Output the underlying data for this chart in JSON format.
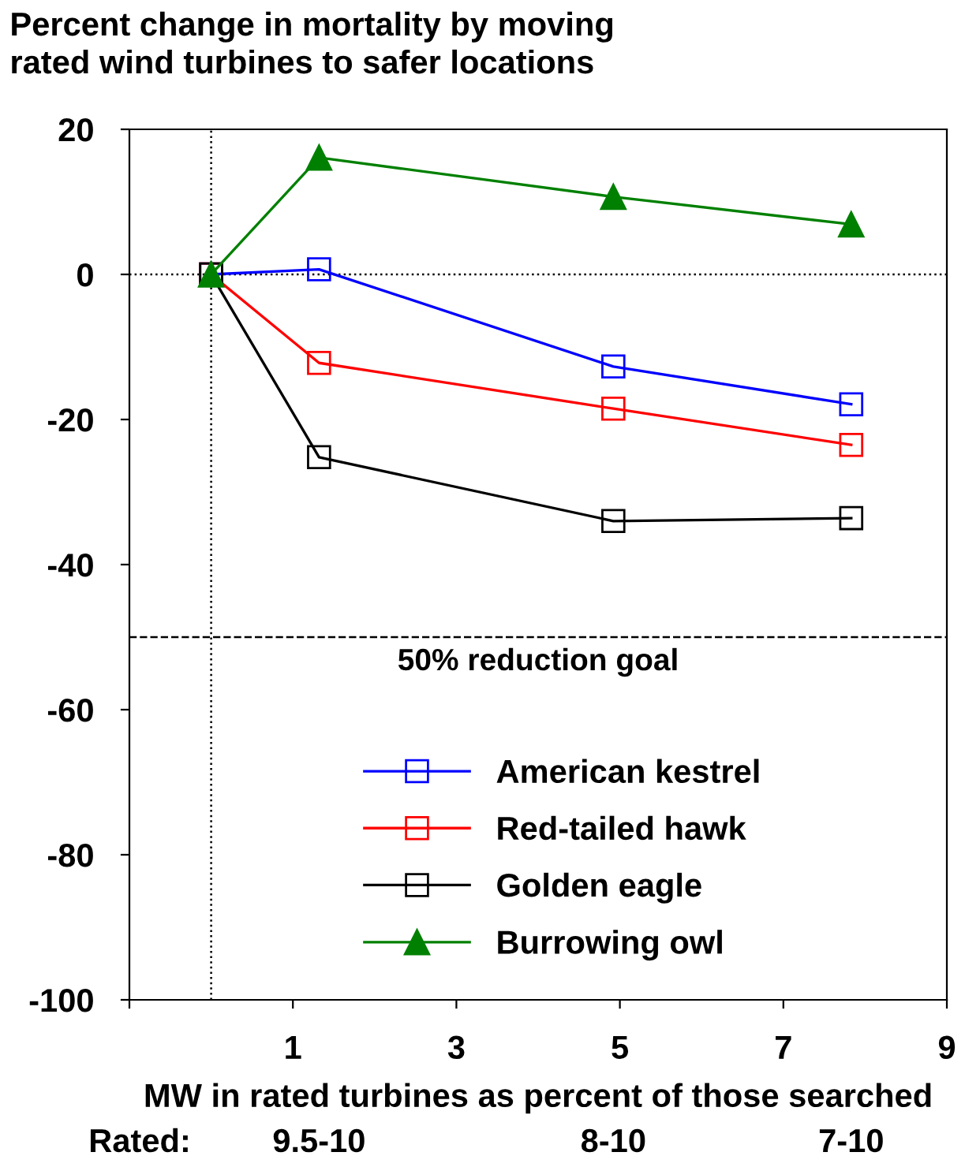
{
  "chart_data": {
    "type": "line",
    "title": "Percent change in mortality by moving\nrated wind turbines to safer locations",
    "xlabel": "MW in rated turbines as percent of those searched",
    "xlim": [
      -1,
      9
    ],
    "xticks": [
      {
        "value": -1,
        "label": null
      },
      1,
      3,
      5,
      7,
      9
    ],
    "ylim": [
      -100,
      20
    ],
    "yticks": [
      -100,
      -80,
      -60,
      -40,
      -20,
      0,
      20
    ],
    "x": [
      0,
      1.32,
      4.92,
      7.83
    ],
    "series": [
      {
        "name": "American kestrel",
        "color": "#0000ff",
        "marker": "square",
        "values": [
          0,
          0.7,
          -12.7,
          -17.9
        ]
      },
      {
        "name": "Red-tailed hawk",
        "color": "#ff0000",
        "marker": "square",
        "values": [
          0,
          -12.2,
          -18.5,
          -23.5
        ]
      },
      {
        "name": "Golden eagle",
        "color": "#000000",
        "marker": "square",
        "values": [
          0,
          -25.2,
          -34.0,
          -33.6
        ]
      },
      {
        "name": "Burrowing owl",
        "color": "#008000",
        "marker": "triangle",
        "values": [
          0,
          16.1,
          10.7,
          6.9
        ]
      }
    ],
    "ref_lines": [
      {
        "axis": "y",
        "value": 0,
        "line_style": "dotted",
        "color": "#000000"
      },
      {
        "axis": "x",
        "value": 0,
        "line_style": "dotted",
        "color": "#000000"
      },
      {
        "axis": "y",
        "value": -50,
        "line_style": "dashed",
        "color": "#000000",
        "label": "50% reduction goal"
      }
    ],
    "annotations": [
      "Rated:",
      "9.5-10",
      "8-10",
      "7-10"
    ],
    "legend": "bottom",
    "grid": false,
    "line_style": "solid"
  }
}
